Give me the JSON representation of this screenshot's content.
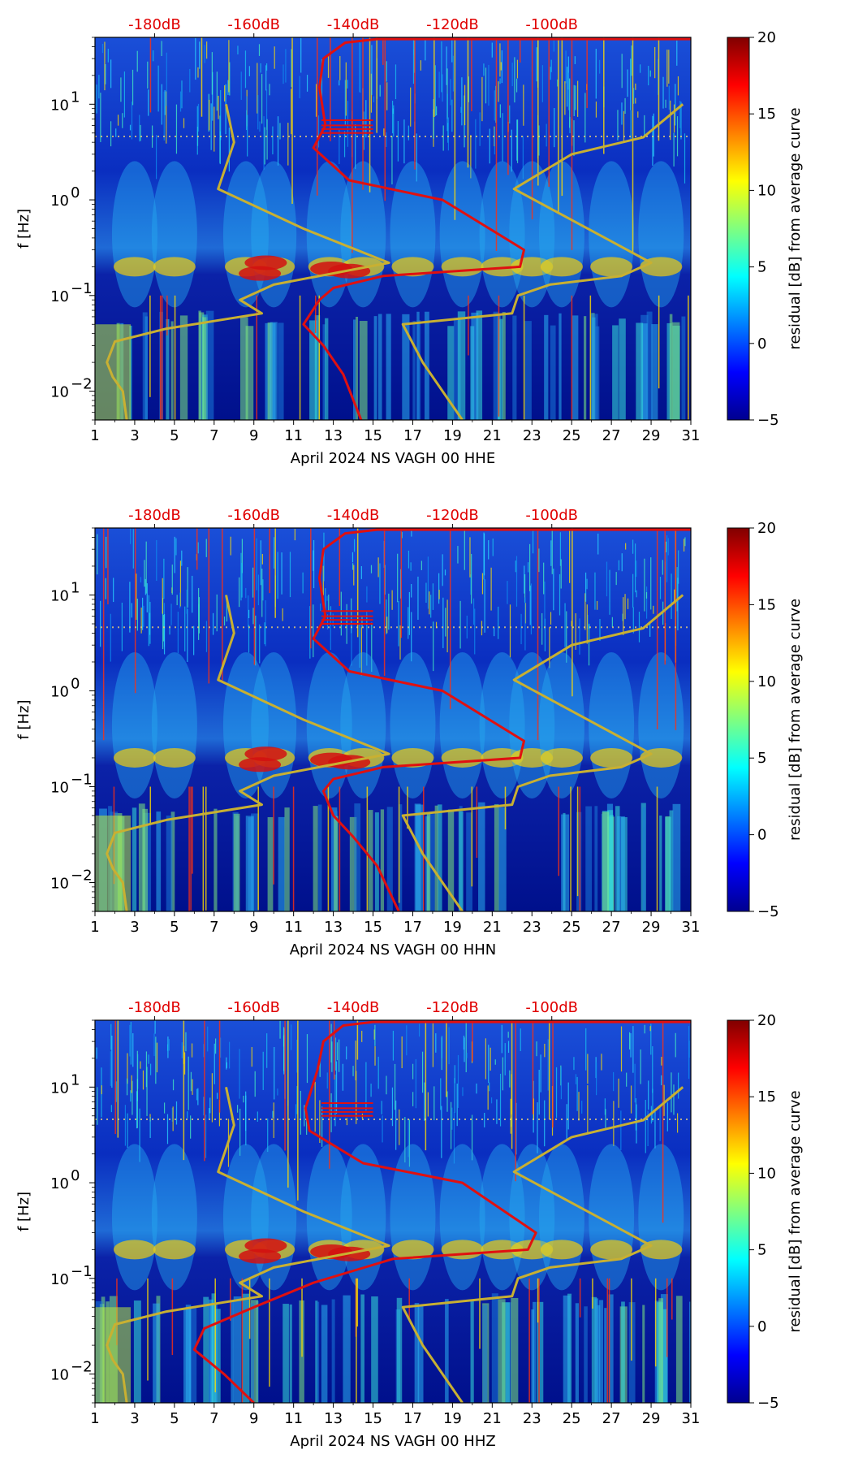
{
  "colors": {
    "ref_curve": "#c8b032",
    "mean_curve": "#e01010",
    "top_axis": "#e00000",
    "background_field": "#00108c"
  },
  "chart_data": [
    {
      "type": "heatmap",
      "title": "",
      "xlabel": "April 2024 NS VAGH 00 HHE",
      "ylabel": "f [Hz]",
      "x_ticks": [
        "1",
        "3",
        "5",
        "7",
        "9",
        "11",
        "13",
        "15",
        "17",
        "19",
        "21",
        "23",
        "25",
        "27",
        "29",
        "31"
      ],
      "xlim": [
        1,
        31
      ],
      "y_scale": "log",
      "ylim": [
        0.005,
        50
      ],
      "y_ticks": [
        {
          "value": 0.01,
          "base": "10",
          "exp": "−2"
        },
        {
          "value": 0.1,
          "base": "10",
          "exp": "−1"
        },
        {
          "value": 1,
          "base": "10",
          "exp": "0"
        },
        {
          "value": 10,
          "base": "10",
          "exp": "1"
        }
      ],
      "top_axis_ticks": [
        "-180dB",
        "-160dB",
        "-140dB",
        "-120dB",
        "-100dB"
      ],
      "colorbar": {
        "label": "residual [dB] from average curve",
        "range": [
          -5,
          20
        ],
        "ticks": [
          "−5",
          "0",
          "5",
          "10",
          "15",
          "20"
        ]
      },
      "series": [
        {
          "name": "reference noise model",
          "color": "#c8b032",
          "points": [
            [
              7.6,
              10
            ],
            [
              8,
              4
            ],
            [
              7.2,
              1.3
            ],
            [
              11.5,
              0.5
            ],
            [
              15.8,
              0.22
            ],
            [
              10,
              0.13
            ],
            [
              8.3,
              0.09
            ],
            [
              9.4,
              0.065
            ],
            [
              4.6,
              0.045
            ],
            [
              2,
              0.033
            ],
            [
              1.6,
              0.02
            ],
            [
              1.9,
              0.014
            ],
            [
              2.4,
              0.01
            ],
            [
              2.6,
              0.005
            ]
          ]
        },
        {
          "name": "reference noise model (high)",
          "color": "#c8b032",
          "points": [
            [
              30.6,
              10
            ],
            [
              28.6,
              4.5
            ],
            [
              25,
              3
            ],
            [
              22.1,
              1.3
            ],
            [
              29,
              0.22
            ],
            [
              27.5,
              0.16
            ],
            [
              23.9,
              0.13
            ],
            [
              22.3,
              0.1
            ],
            [
              22,
              0.065
            ],
            [
              16.5,
              0.05
            ],
            [
              17.5,
              0.02
            ],
            [
              19.5,
              0.005
            ]
          ]
        },
        {
          "name": "average spectrum",
          "color": "#e01010",
          "points": [
            [
              31,
              48
            ],
            [
              15.2,
              48
            ],
            [
              13.6,
              44
            ],
            [
              12.5,
              30
            ],
            [
              12.3,
              15
            ],
            [
              12.6,
              6
            ],
            [
              12,
              3.5
            ],
            [
              13.8,
              1.6
            ],
            [
              18.5,
              1
            ],
            [
              22.6,
              0.3
            ],
            [
              22.4,
              0.2
            ],
            [
              15.5,
              0.16
            ],
            [
              13,
              0.12
            ],
            [
              12.3,
              0.09
            ],
            [
              11.5,
              0.05
            ],
            [
              12.5,
              0.03
            ],
            [
              13.5,
              0.015
            ],
            [
              14.4,
              0.005
            ]
          ]
        }
      ]
    },
    {
      "type": "heatmap",
      "title": "",
      "xlabel": "April 2024 NS VAGH 00 HHN",
      "ylabel": "f [Hz]",
      "x_ticks": [
        "1",
        "3",
        "5",
        "7",
        "9",
        "11",
        "13",
        "15",
        "17",
        "19",
        "21",
        "23",
        "25",
        "27",
        "29",
        "31"
      ],
      "xlim": [
        1,
        31
      ],
      "y_scale": "log",
      "ylim": [
        0.005,
        50
      ],
      "y_ticks": [
        {
          "value": 0.01,
          "base": "10",
          "exp": "−2"
        },
        {
          "value": 0.1,
          "base": "10",
          "exp": "−1"
        },
        {
          "value": 1,
          "base": "10",
          "exp": "0"
        },
        {
          "value": 10,
          "base": "10",
          "exp": "1"
        }
      ],
      "top_axis_ticks": [
        "-180dB",
        "-160dB",
        "-140dB",
        "-120dB",
        "-100dB"
      ],
      "colorbar": {
        "label": "residual [dB] from average curve",
        "range": [
          -5,
          20
        ],
        "ticks": [
          "−5",
          "0",
          "5",
          "10",
          "15",
          "20"
        ]
      },
      "series": [
        {
          "name": "reference noise model",
          "color": "#c8b032",
          "points": [
            [
              7.6,
              10
            ],
            [
              8,
              4
            ],
            [
              7.2,
              1.3
            ],
            [
              11.5,
              0.5
            ],
            [
              15.8,
              0.22
            ],
            [
              10,
              0.13
            ],
            [
              8.3,
              0.09
            ],
            [
              9.4,
              0.065
            ],
            [
              4.6,
              0.045
            ],
            [
              2,
              0.033
            ],
            [
              1.6,
              0.02
            ],
            [
              1.9,
              0.014
            ],
            [
              2.4,
              0.01
            ],
            [
              2.6,
              0.005
            ]
          ]
        },
        {
          "name": "reference noise model (high)",
          "color": "#c8b032",
          "points": [
            [
              30.6,
              10
            ],
            [
              28.6,
              4.5
            ],
            [
              25,
              3
            ],
            [
              22.1,
              1.3
            ],
            [
              29,
              0.22
            ],
            [
              27.5,
              0.16
            ],
            [
              23.9,
              0.13
            ],
            [
              22.3,
              0.1
            ],
            [
              22,
              0.065
            ],
            [
              16.5,
              0.05
            ],
            [
              17.5,
              0.02
            ],
            [
              19.5,
              0.005
            ]
          ]
        },
        {
          "name": "average spectrum",
          "color": "#e01010",
          "points": [
            [
              31,
              48
            ],
            [
              15.2,
              48
            ],
            [
              13.6,
              44
            ],
            [
              12.5,
              30
            ],
            [
              12.3,
              15
            ],
            [
              12.6,
              6
            ],
            [
              12,
              3.5
            ],
            [
              13.8,
              1.6
            ],
            [
              18.5,
              1
            ],
            [
              22.6,
              0.3
            ],
            [
              22.4,
              0.2
            ],
            [
              15.5,
              0.16
            ],
            [
              13,
              0.12
            ],
            [
              12.5,
              0.09
            ],
            [
              13,
              0.05
            ],
            [
              14,
              0.03
            ],
            [
              15.2,
              0.015
            ],
            [
              16.3,
              0.005
            ]
          ]
        }
      ]
    },
    {
      "type": "heatmap",
      "title": "",
      "xlabel": "April 2024 NS VAGH 00 HHZ",
      "ylabel": "f [Hz]",
      "x_ticks": [
        "1",
        "3",
        "5",
        "7",
        "9",
        "11",
        "13",
        "15",
        "17",
        "19",
        "21",
        "23",
        "25",
        "27",
        "29",
        "31"
      ],
      "xlim": [
        1,
        31
      ],
      "y_scale": "log",
      "ylim": [
        0.005,
        50
      ],
      "y_ticks": [
        {
          "value": 0.01,
          "base": "10",
          "exp": "−2"
        },
        {
          "value": 0.1,
          "base": "10",
          "exp": "−1"
        },
        {
          "value": 1,
          "base": "10",
          "exp": "0"
        },
        {
          "value": 10,
          "base": "10",
          "exp": "1"
        }
      ],
      "top_axis_ticks": [
        "-180dB",
        "-160dB",
        "-140dB",
        "-120dB",
        "-100dB"
      ],
      "colorbar": {
        "label": "residual [dB] from average curve",
        "range": [
          -5,
          20
        ],
        "ticks": [
          "−5",
          "0",
          "5",
          "10",
          "15",
          "20"
        ]
      },
      "series": [
        {
          "name": "reference noise model",
          "color": "#c8b032",
          "points": [
            [
              7.6,
              10
            ],
            [
              8,
              4
            ],
            [
              7.2,
              1.3
            ],
            [
              11.5,
              0.5
            ],
            [
              15.8,
              0.22
            ],
            [
              10,
              0.13
            ],
            [
              8.3,
              0.09
            ],
            [
              9.4,
              0.065
            ],
            [
              4.6,
              0.045
            ],
            [
              2,
              0.033
            ],
            [
              1.6,
              0.02
            ],
            [
              1.9,
              0.014
            ],
            [
              2.4,
              0.01
            ],
            [
              2.6,
              0.005
            ]
          ]
        },
        {
          "name": "reference noise model (high)",
          "color": "#c8b032",
          "points": [
            [
              30.6,
              10
            ],
            [
              28.6,
              4.5
            ],
            [
              25,
              3
            ],
            [
              22.1,
              1.3
            ],
            [
              29,
              0.22
            ],
            [
              27.5,
              0.16
            ],
            [
              23.9,
              0.13
            ],
            [
              22.3,
              0.1
            ],
            [
              22,
              0.065
            ],
            [
              16.5,
              0.05
            ],
            [
              17.5,
              0.02
            ],
            [
              19.5,
              0.005
            ]
          ]
        },
        {
          "name": "average spectrum",
          "color": "#e01010",
          "points": [
            [
              31,
              48
            ],
            [
              15,
              48
            ],
            [
              13.5,
              44
            ],
            [
              12.5,
              30
            ],
            [
              12.2,
              15
            ],
            [
              11.6,
              6
            ],
            [
              11.8,
              3.5
            ],
            [
              14.5,
              1.6
            ],
            [
              19.5,
              1
            ],
            [
              23.2,
              0.3
            ],
            [
              22.8,
              0.2
            ],
            [
              16,
              0.16
            ],
            [
              14,
              0.12
            ],
            [
              12,
              0.09
            ],
            [
              9,
              0.05
            ],
            [
              6.5,
              0.03
            ],
            [
              6,
              0.018
            ],
            [
              7.5,
              0.01
            ],
            [
              9,
              0.005
            ]
          ]
        }
      ]
    }
  ]
}
